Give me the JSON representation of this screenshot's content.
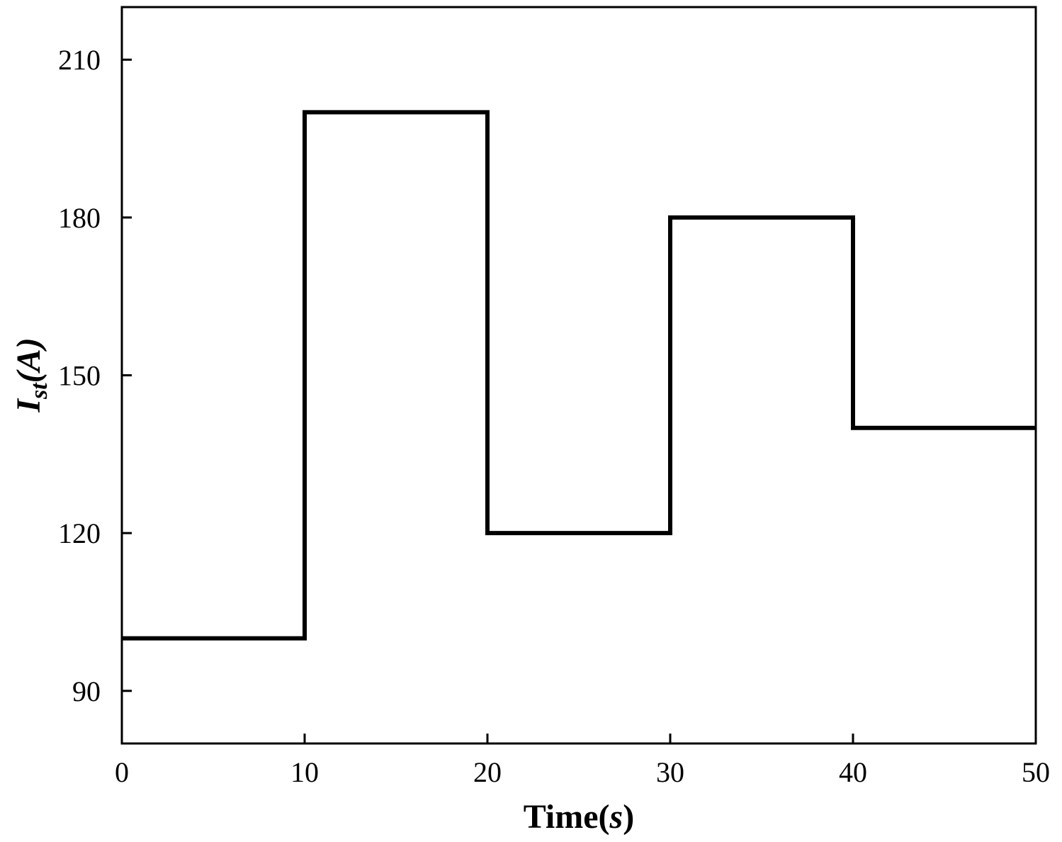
{
  "chart_data": {
    "type": "line",
    "style": "step",
    "xlabel": {
      "main": "Time(",
      "unit": "s",
      "close": ")"
    },
    "ylabel": {
      "main": "I",
      "subscript": "st",
      "unit": "(A)"
    },
    "xlim": [
      0,
      50
    ],
    "ylim": [
      80,
      220
    ],
    "xticks": [
      0,
      10,
      20,
      30,
      40,
      50
    ],
    "yticks": [
      90,
      120,
      150,
      180,
      210
    ],
    "xtick_labels": [
      "0",
      "10",
      "20",
      "30",
      "40",
      "50"
    ],
    "ytick_labels": [
      "90",
      "120",
      "150",
      "180",
      "210"
    ],
    "grid": false,
    "legend": "none",
    "series": [
      {
        "color": "#000000",
        "x": [
          0,
          10,
          10,
          20,
          20,
          30,
          30,
          40,
          40,
          50
        ],
        "y": [
          100,
          100,
          200,
          200,
          120,
          120,
          180,
          180,
          140,
          140
        ]
      }
    ]
  }
}
